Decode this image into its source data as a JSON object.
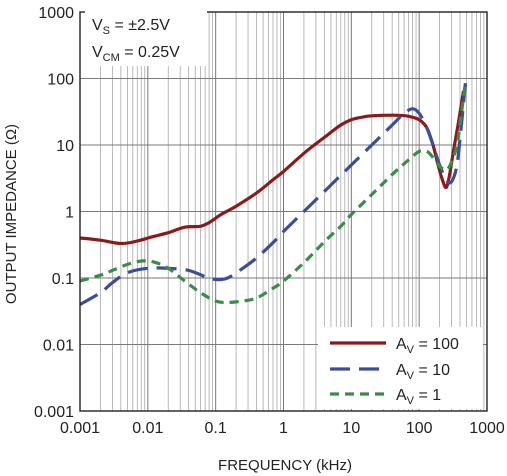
{
  "chart_data": {
    "type": "line",
    "xlabel": "FREQUENCY (kHz)",
    "ylabel": "OUTPUT IMPEDANCE (Ω)",
    "x_scale": "log",
    "y_scale": "log",
    "xlim": [
      0.001,
      1000
    ],
    "ylim": [
      0.001,
      1000
    ],
    "grid": true,
    "legend_position": "bottom-right",
    "x_ticks": [
      "0.001",
      "0.01",
      "0.1",
      "1",
      "10",
      "100",
      "1000"
    ],
    "y_ticks": [
      "1000",
      "100",
      "10",
      "1",
      "0.1",
      "0.01",
      "0.001"
    ],
    "annotations": {
      "vs_main": "V",
      "vs_sub": "S",
      "vs_value": " = ±2.5V",
      "vcm_main": "V",
      "vcm_sub": "CM",
      "vcm_value": " = 0.25V"
    },
    "series": [
      {
        "name": "AV = 100",
        "legend_main": "A",
        "legend_sub": "V",
        "legend_value": " = 100",
        "color": "#8b1a1a",
        "dash": "solid",
        "x": [
          0.001,
          0.002,
          0.004,
          0.007,
          0.012,
          0.02,
          0.035,
          0.06,
          0.08,
          0.12,
          0.2,
          0.4,
          0.7,
          1,
          2,
          4,
          7,
          10,
          15,
          20,
          30,
          50,
          70,
          100,
          130,
          160,
          190,
          220,
          250,
          280,
          320,
          380,
          450
        ],
        "y": [
          0.4,
          0.37,
          0.33,
          0.36,
          0.42,
          0.48,
          0.58,
          0.6,
          0.68,
          0.9,
          1.2,
          1.9,
          3.0,
          4.0,
          7.5,
          13,
          20,
          24,
          26.5,
          27.5,
          28,
          28,
          27,
          24,
          18,
          10,
          5,
          3,
          2.3,
          3.5,
          8,
          22,
          65
        ]
      },
      {
        "name": "AV = 10",
        "legend_main": "A",
        "legend_sub": "V",
        "legend_value": " = 10",
        "color": "#3a4e9a",
        "dash": "long",
        "x": [
          0.001,
          0.002,
          0.003,
          0.005,
          0.01,
          0.02,
          0.04,
          0.07,
          0.1,
          0.15,
          0.25,
          0.4,
          0.7,
          1,
          2,
          4,
          7,
          10,
          20,
          40,
          60,
          80,
          100,
          130,
          160,
          200,
          250,
          300,
          360,
          420,
          480
        ],
        "y": [
          0.04,
          0.06,
          0.085,
          0.12,
          0.14,
          0.14,
          0.13,
          0.105,
          0.095,
          0.1,
          0.14,
          0.2,
          0.34,
          0.5,
          1.0,
          2.0,
          3.5,
          5.0,
          10,
          20,
          30,
          35,
          30,
          18,
          10,
          5,
          3,
          2.8,
          5,
          20,
          85
        ]
      },
      {
        "name": "AV = 1",
        "legend_main": "A",
        "legend_sub": "V",
        "legend_value": " = 1",
        "color": "#3e8a4a",
        "dash": "short",
        "x": [
          0.001,
          0.002,
          0.003,
          0.005,
          0.008,
          0.012,
          0.02,
          0.035,
          0.06,
          0.1,
          0.15,
          0.25,
          0.4,
          0.7,
          1,
          2,
          4,
          7,
          10,
          20,
          40,
          70,
          100,
          130,
          160,
          200,
          250,
          300,
          360,
          420,
          480
        ],
        "y": [
          0.09,
          0.11,
          0.13,
          0.16,
          0.18,
          0.175,
          0.14,
          0.09,
          0.06,
          0.045,
          0.043,
          0.045,
          0.05,
          0.07,
          0.09,
          0.17,
          0.35,
          0.6,
          0.9,
          1.8,
          3.6,
          6.0,
          8.0,
          8.0,
          6.5,
          4.8,
          4.2,
          5.5,
          10,
          30,
          90
        ]
      }
    ]
  }
}
